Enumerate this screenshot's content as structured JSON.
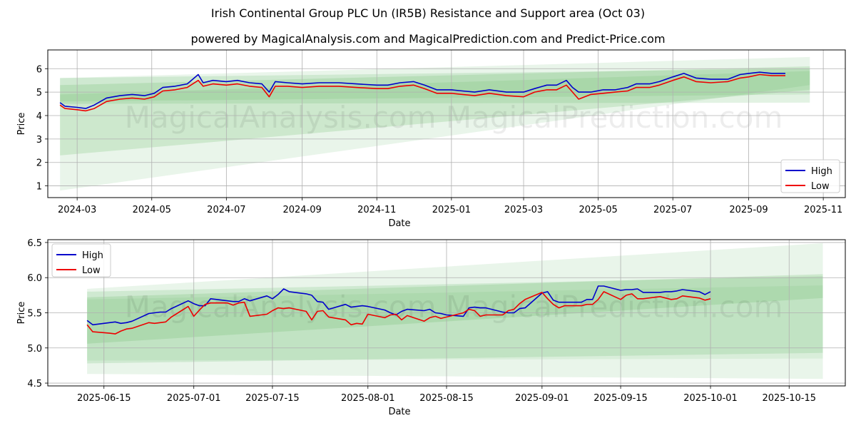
{
  "title": "Irish Continental Group PLC Un (IR5B) Resistance and Support area (Oct 03)",
  "subtitle": "powered by MagicalAnalysis.com and MagicalPrediction.com and Predict-Price.com",
  "watermark": "MagicalAnalysis.com   MagicalPrediction.com",
  "colors": {
    "high": "#0000cc",
    "low": "#ee0000",
    "band": "#4caf50",
    "grid": "#b0b0b0"
  },
  "chart_data": [
    {
      "type": "line",
      "xlabel": "Date",
      "ylabel": "Price",
      "xlim": [
        "2024-02-06",
        "2025-11-19"
      ],
      "ylim": [
        0.5,
        6.8
      ],
      "xticks": [
        {
          "date": "2024-03-01",
          "label": "2024-03"
        },
        {
          "date": "2024-05-01",
          "label": "2024-05"
        },
        {
          "date": "2024-07-01",
          "label": "2024-07"
        },
        {
          "date": "2024-09-01",
          "label": "2024-09"
        },
        {
          "date": "2024-11-01",
          "label": "2024-11"
        },
        {
          "date": "2025-01-01",
          "label": "2025-01"
        },
        {
          "date": "2025-03-01",
          "label": "2025-03"
        },
        {
          "date": "2025-05-01",
          "label": "2025-05"
        },
        {
          "date": "2025-07-01",
          "label": "2025-07"
        },
        {
          "date": "2025-09-01",
          "label": "2025-09"
        },
        {
          "date": "2025-11-01",
          "label": "2025-11"
        }
      ],
      "yticks": [
        1,
        2,
        3,
        4,
        5,
        6
      ],
      "legend": [
        "High",
        "Low"
      ],
      "legend_position": "lower-right",
      "bands": [
        {
          "x": [
            "2024-02-16",
            "2025-10-21"
          ],
          "lower": [
            0.8,
            5.3
          ],
          "upper": [
            5.6,
            6.5
          ],
          "opacity": 0.12
        },
        {
          "x": [
            "2024-02-16",
            "2025-10-21"
          ],
          "lower": [
            2.3,
            5.1
          ],
          "upper": [
            5.3,
            6.1
          ],
          "opacity": 0.18
        },
        {
          "x": [
            "2024-02-16",
            "2025-10-21"
          ],
          "lower": [
            4.5,
            4.55
          ],
          "upper": [
            5.6,
            6.0
          ],
          "opacity": 0.16
        },
        {
          "x": [
            "2024-02-16",
            "2025-10-21"
          ],
          "lower": [
            4.6,
            4.9
          ],
          "upper": [
            4.9,
            5.9
          ],
          "opacity": 0.14
        }
      ],
      "series": [
        {
          "name": "High",
          "dates": [
            "2024-02-16",
            "2024-02-20",
            "2024-03-01",
            "2024-03-08",
            "2024-03-15",
            "2024-03-25",
            "2024-04-05",
            "2024-04-15",
            "2024-04-25",
            "2024-05-03",
            "2024-05-10",
            "2024-05-20",
            "2024-05-30",
            "2024-06-08",
            "2024-06-12",
            "2024-06-20",
            "2024-07-01",
            "2024-07-10",
            "2024-07-20",
            "2024-07-30",
            "2024-08-05",
            "2024-08-10",
            "2024-08-20",
            "2024-09-01",
            "2024-09-15",
            "2024-10-01",
            "2024-10-15",
            "2024-11-01",
            "2024-11-10",
            "2024-11-20",
            "2024-12-01",
            "2024-12-10",
            "2024-12-20",
            "2025-01-01",
            "2025-01-10",
            "2025-01-20",
            "2025-02-01",
            "2025-02-15",
            "2025-03-01",
            "2025-03-10",
            "2025-03-20",
            "2025-03-28",
            "2025-04-05",
            "2025-04-10",
            "2025-04-15",
            "2025-04-25",
            "2025-05-05",
            "2025-05-15",
            "2025-05-25",
            "2025-06-01",
            "2025-06-12",
            "2025-06-20",
            "2025-07-01",
            "2025-07-10",
            "2025-07-20",
            "2025-08-01",
            "2025-08-15",
            "2025-08-25",
            "2025-09-01",
            "2025-09-10",
            "2025-09-20",
            "2025-10-01"
          ],
          "values": [
            4.55,
            4.4,
            4.35,
            4.3,
            4.45,
            4.75,
            4.85,
            4.9,
            4.85,
            4.95,
            5.2,
            5.25,
            5.35,
            5.75,
            5.4,
            5.5,
            5.45,
            5.5,
            5.4,
            5.35,
            5.0,
            5.45,
            5.4,
            5.35,
            5.4,
            5.4,
            5.35,
            5.3,
            5.3,
            5.4,
            5.45,
            5.3,
            5.1,
            5.1,
            5.05,
            5.0,
            5.1,
            5.0,
            5.0,
            5.15,
            5.3,
            5.3,
            5.5,
            5.2,
            5.0,
            5.0,
            5.1,
            5.1,
            5.2,
            5.35,
            5.35,
            5.45,
            5.65,
            5.8,
            5.6,
            5.55,
            5.55,
            5.75,
            5.8,
            5.85,
            5.8,
            5.8
          ]
        },
        {
          "name": "Low",
          "dates": [
            "2024-02-16",
            "2024-02-20",
            "2024-03-01",
            "2024-03-08",
            "2024-03-15",
            "2024-03-25",
            "2024-04-05",
            "2024-04-15",
            "2024-04-25",
            "2024-05-03",
            "2024-05-10",
            "2024-05-20",
            "2024-05-30",
            "2024-06-08",
            "2024-06-12",
            "2024-06-20",
            "2024-07-01",
            "2024-07-10",
            "2024-07-20",
            "2024-07-30",
            "2024-08-05",
            "2024-08-10",
            "2024-08-20",
            "2024-09-01",
            "2024-09-15",
            "2024-10-01",
            "2024-10-15",
            "2024-11-01",
            "2024-11-10",
            "2024-11-20",
            "2024-12-01",
            "2024-12-10",
            "2024-12-20",
            "2025-01-01",
            "2025-01-10",
            "2025-01-20",
            "2025-02-01",
            "2025-02-15",
            "2025-03-01",
            "2025-03-10",
            "2025-03-20",
            "2025-03-28",
            "2025-04-05",
            "2025-04-10",
            "2025-04-15",
            "2025-04-25",
            "2025-05-05",
            "2025-05-15",
            "2025-05-25",
            "2025-06-01",
            "2025-06-12",
            "2025-06-20",
            "2025-07-01",
            "2025-07-10",
            "2025-07-20",
            "2025-08-01",
            "2025-08-15",
            "2025-08-25",
            "2025-09-01",
            "2025-09-10",
            "2025-09-20",
            "2025-10-01"
          ],
          "values": [
            4.45,
            4.3,
            4.25,
            4.2,
            4.3,
            4.6,
            4.7,
            4.75,
            4.7,
            4.8,
            5.05,
            5.1,
            5.2,
            5.5,
            5.25,
            5.35,
            5.3,
            5.35,
            5.25,
            5.2,
            4.8,
            5.25,
            5.25,
            5.2,
            5.25,
            5.25,
            5.2,
            5.15,
            5.15,
            5.25,
            5.3,
            5.15,
            4.95,
            4.95,
            4.9,
            4.85,
            4.95,
            4.85,
            4.8,
            5.0,
            5.1,
            5.1,
            5.3,
            5.0,
            4.7,
            4.9,
            4.95,
            5.0,
            5.05,
            5.2,
            5.2,
            5.3,
            5.5,
            5.65,
            5.45,
            5.4,
            5.45,
            5.6,
            5.65,
            5.75,
            5.7,
            5.7
          ]
        }
      ]
    },
    {
      "type": "line",
      "xlabel": "Date",
      "ylabel": "Price",
      "xlim": [
        "2025-06-05",
        "2025-10-25"
      ],
      "ylim": [
        4.46,
        6.54
      ],
      "xticks": [
        {
          "date": "2025-06-15",
          "label": "2025-06-15"
        },
        {
          "date": "2025-07-01",
          "label": "2025-07-01"
        },
        {
          "date": "2025-07-15",
          "label": "2025-07-15"
        },
        {
          "date": "2025-08-01",
          "label": "2025-08-01"
        },
        {
          "date": "2025-08-15",
          "label": "2025-08-15"
        },
        {
          "date": "2025-09-01",
          "label": "2025-09-01"
        },
        {
          "date": "2025-09-15",
          "label": "2025-09-15"
        },
        {
          "date": "2025-10-01",
          "label": "2025-10-01"
        },
        {
          "date": "2025-10-15",
          "label": "2025-10-15"
        }
      ],
      "yticks": [
        4.5,
        5.0,
        5.5,
        6.0,
        6.5
      ],
      "legend": [
        "High",
        "Low"
      ],
      "legend_position": "upper-left",
      "bands": [
        {
          "x": [
            "2025-06-12",
            "2025-10-21"
          ],
          "lower": [
            4.63,
            4.56
          ],
          "upper": [
            5.84,
            6.49
          ],
          "opacity": 0.12
        },
        {
          "x": [
            "2025-06-12",
            "2025-10-21"
          ],
          "lower": [
            5.06,
            5.71
          ],
          "upper": [
            5.72,
            6.05
          ],
          "opacity": 0.18
        },
        {
          "x": [
            "2025-06-12",
            "2025-10-21"
          ],
          "lower": [
            4.78,
            4.93
          ],
          "upper": [
            5.8,
            6.02
          ],
          "opacity": 0.16
        },
        {
          "x": [
            "2025-06-12",
            "2025-10-21"
          ],
          "lower": [
            4.82,
            4.85
          ],
          "upper": [
            5.69,
            5.89
          ],
          "opacity": 0.1
        }
      ],
      "series": [
        {
          "name": "High",
          "dates": [
            "2025-06-12",
            "2025-06-13",
            "2025-06-16",
            "2025-06-17",
            "2025-06-18",
            "2025-06-19",
            "2025-06-20",
            "2025-06-23",
            "2025-06-24",
            "2025-06-25",
            "2025-06-26",
            "2025-06-27",
            "2025-06-30",
            "2025-07-01",
            "2025-07-02",
            "2025-07-03",
            "2025-07-04",
            "2025-07-07",
            "2025-07-08",
            "2025-07-09",
            "2025-07-10",
            "2025-07-11",
            "2025-07-14",
            "2025-07-15",
            "2025-07-16",
            "2025-07-17",
            "2025-07-18",
            "2025-07-21",
            "2025-07-22",
            "2025-07-23",
            "2025-07-24",
            "2025-07-25",
            "2025-07-28",
            "2025-07-29",
            "2025-07-30",
            "2025-07-31",
            "2025-08-01",
            "2025-08-04",
            "2025-08-05",
            "2025-08-06",
            "2025-08-07",
            "2025-08-08",
            "2025-08-11",
            "2025-08-12",
            "2025-08-13",
            "2025-08-14",
            "2025-08-15",
            "2025-08-18",
            "2025-08-19",
            "2025-08-20",
            "2025-08-21",
            "2025-08-22",
            "2025-08-25",
            "2025-08-26",
            "2025-08-27",
            "2025-08-28",
            "2025-08-29",
            "2025-09-01",
            "2025-09-02",
            "2025-09-03",
            "2025-09-04",
            "2025-09-05",
            "2025-09-08",
            "2025-09-09",
            "2025-09-10",
            "2025-09-11",
            "2025-09-12",
            "2025-09-15",
            "2025-09-16",
            "2025-09-17",
            "2025-09-18",
            "2025-09-19",
            "2025-09-22",
            "2025-09-23",
            "2025-09-24",
            "2025-09-25",
            "2025-09-26",
            "2025-09-29",
            "2025-09-30",
            "2025-10-01"
          ],
          "values": [
            5.39,
            5.33,
            5.36,
            5.37,
            5.35,
            5.36,
            5.38,
            5.49,
            5.5,
            5.51,
            5.51,
            5.56,
            5.67,
            5.63,
            5.6,
            5.6,
            5.7,
            5.67,
            5.66,
            5.66,
            5.7,
            5.67,
            5.74,
            5.7,
            5.76,
            5.84,
            5.8,
            5.77,
            5.75,
            5.66,
            5.65,
            5.55,
            5.62,
            5.58,
            5.59,
            5.6,
            5.59,
            5.54,
            5.5,
            5.47,
            5.52,
            5.55,
            5.53,
            5.55,
            5.5,
            5.49,
            5.47,
            5.45,
            5.57,
            5.58,
            5.57,
            5.57,
            5.51,
            5.5,
            5.5,
            5.56,
            5.57,
            5.78,
            5.8,
            5.68,
            5.65,
            5.65,
            5.65,
            5.69,
            5.69,
            5.88,
            5.88,
            5.82,
            5.83,
            5.83,
            5.84,
            5.79,
            5.79,
            5.8,
            5.8,
            5.81,
            5.83,
            5.8,
            5.76,
            5.8
          ]
        },
        {
          "name": "Low",
          "dates": [
            "2025-06-12",
            "2025-06-13",
            "2025-06-16",
            "2025-06-17",
            "2025-06-18",
            "2025-06-19",
            "2025-06-20",
            "2025-06-23",
            "2025-06-24",
            "2025-06-25",
            "2025-06-26",
            "2025-06-27",
            "2025-06-30",
            "2025-07-01",
            "2025-07-02",
            "2025-07-03",
            "2025-07-04",
            "2025-07-07",
            "2025-07-08",
            "2025-07-09",
            "2025-07-10",
            "2025-07-11",
            "2025-07-14",
            "2025-07-15",
            "2025-07-16",
            "2025-07-17",
            "2025-07-18",
            "2025-07-21",
            "2025-07-22",
            "2025-07-23",
            "2025-07-24",
            "2025-07-25",
            "2025-07-28",
            "2025-07-29",
            "2025-07-30",
            "2025-07-31",
            "2025-08-01",
            "2025-08-04",
            "2025-08-05",
            "2025-08-06",
            "2025-08-07",
            "2025-08-08",
            "2025-08-11",
            "2025-08-12",
            "2025-08-13",
            "2025-08-14",
            "2025-08-15",
            "2025-08-18",
            "2025-08-19",
            "2025-08-20",
            "2025-08-21",
            "2025-08-22",
            "2025-08-25",
            "2025-08-26",
            "2025-08-27",
            "2025-08-28",
            "2025-08-29",
            "2025-09-01",
            "2025-09-02",
            "2025-09-03",
            "2025-09-04",
            "2025-09-05",
            "2025-09-08",
            "2025-09-09",
            "2025-09-10",
            "2025-09-11",
            "2025-09-12",
            "2025-09-15",
            "2025-09-16",
            "2025-09-17",
            "2025-09-18",
            "2025-09-19",
            "2025-09-22",
            "2025-09-23",
            "2025-09-24",
            "2025-09-25",
            "2025-09-26",
            "2025-09-29",
            "2025-09-30",
            "2025-10-01"
          ],
          "values": [
            5.33,
            5.23,
            5.21,
            5.2,
            5.24,
            5.27,
            5.28,
            5.36,
            5.35,
            5.36,
            5.37,
            5.44,
            5.59,
            5.45,
            5.54,
            5.62,
            5.64,
            5.64,
            5.61,
            5.64,
            5.65,
            5.45,
            5.48,
            5.53,
            5.57,
            5.56,
            5.57,
            5.52,
            5.4,
            5.52,
            5.53,
            5.44,
            5.4,
            5.33,
            5.35,
            5.34,
            5.48,
            5.43,
            5.47,
            5.48,
            5.4,
            5.46,
            5.38,
            5.43,
            5.45,
            5.42,
            5.44,
            5.5,
            5.55,
            5.53,
            5.45,
            5.47,
            5.47,
            5.53,
            5.55,
            5.63,
            5.69,
            5.79,
            5.7,
            5.62,
            5.57,
            5.6,
            5.6,
            5.62,
            5.62,
            5.69,
            5.8,
            5.69,
            5.75,
            5.77,
            5.7,
            5.7,
            5.73,
            5.71,
            5.69,
            5.7,
            5.74,
            5.71,
            5.68,
            5.7
          ]
        }
      ]
    }
  ]
}
